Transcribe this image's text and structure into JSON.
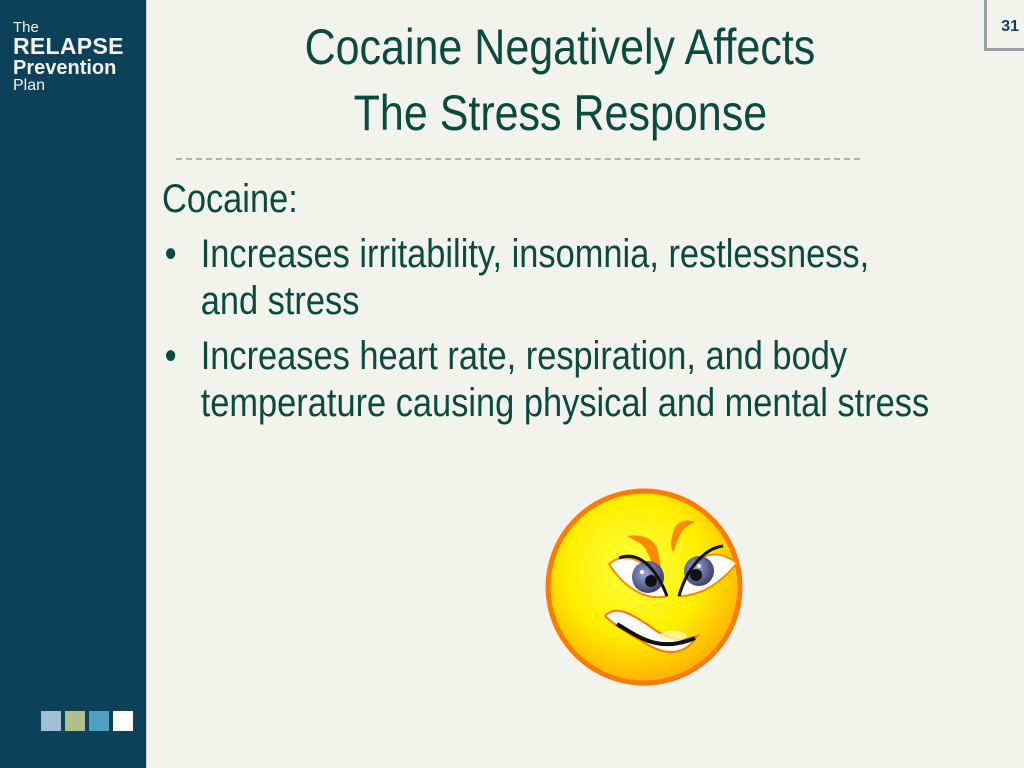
{
  "logo": {
    "line1": "The",
    "line2": "RELAPSE",
    "line3": "Prevention",
    "line4": "Plan"
  },
  "page_number": "31",
  "title": {
    "line1": "Cocaine Negatively Affects",
    "line2": "The Stress Response"
  },
  "body": {
    "heading": "Cocaine:",
    "bullets": [
      {
        "line1": "Increases irritability, insomnia, restlessness,",
        "line2": "and stress"
      },
      {
        "line1": "Increases heart rate, respiration, and body",
        "line2": "temperature causing physical and mental stress"
      }
    ]
  },
  "colors": {
    "sidebar": "#0d4159",
    "background": "#f3f3ee",
    "text": "#0b4a3f",
    "squares": [
      "#a3bfd6",
      "#b4bd8c",
      "#4fa0c1",
      "#ffffff"
    ]
  },
  "image": "angry-smiley-face"
}
